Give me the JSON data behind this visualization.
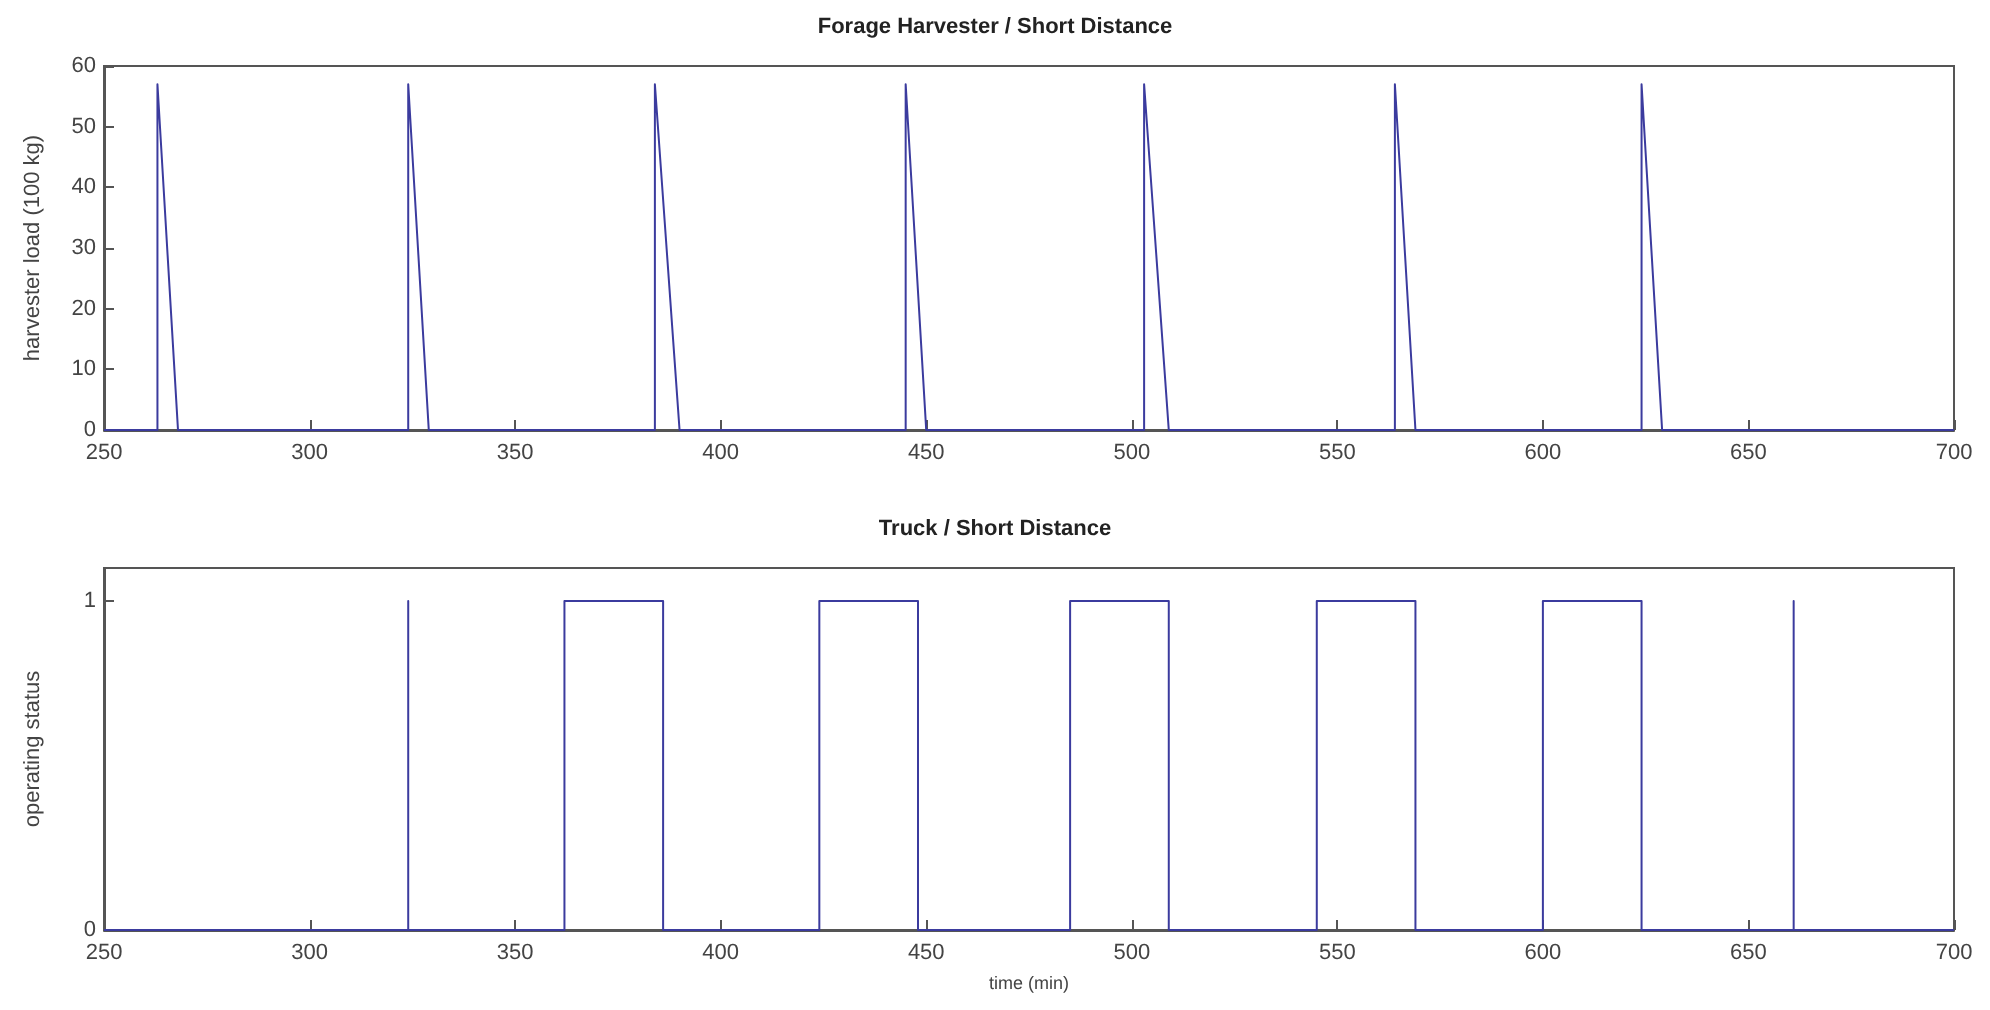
{
  "chart_data": [
    {
      "type": "line",
      "title": "Forage Harvester / Short Distance",
      "ylabel": "harvester load (100 kg)",
      "color": "#3b3b9e",
      "marker": "none",
      "x": [
        250,
        263,
        263,
        268,
        324,
        324,
        329,
        384,
        384,
        390,
        445,
        445,
        450,
        503,
        503,
        509,
        564,
        564,
        569,
        624,
        624,
        629,
        700
      ],
      "values": [
        0,
        0,
        57,
        0,
        0,
        57,
        0,
        0,
        57,
        0,
        0,
        57,
        0,
        0,
        57,
        0,
        0,
        57,
        0,
        0,
        57,
        0,
        0
      ],
      "xlim": [
        250,
        700
      ],
      "xticks": [
        250,
        300,
        350,
        400,
        450,
        500,
        550,
        600,
        650,
        700
      ],
      "ylim": [
        0,
        60
      ],
      "yticks": [
        0,
        10,
        20,
        30,
        40,
        50,
        60
      ]
    },
    {
      "type": "line",
      "title": "Truck / Short Distance",
      "ylabel": "operating status",
      "xlabel": "time (min)",
      "color": "#3b3b9e",
      "marker": "none",
      "x": [
        250,
        324,
        324,
        324,
        362,
        362,
        386,
        386,
        424,
        424,
        448,
        448,
        485,
        485,
        509,
        509,
        545,
        545,
        569,
        569,
        600,
        600,
        624,
        624,
        661,
        661,
        661,
        700
      ],
      "values": [
        0,
        0,
        1,
        0,
        0,
        1,
        1,
        0,
        0,
        1,
        1,
        0,
        0,
        1,
        1,
        0,
        0,
        1,
        1,
        0,
        0,
        1,
        1,
        0,
        0,
        1,
        0,
        0
      ],
      "xlim": [
        250,
        700
      ],
      "xticks": [
        250,
        300,
        350,
        400,
        450,
        500,
        550,
        600,
        650,
        700
      ],
      "ylim": [
        0,
        1.1
      ],
      "yticks": [
        0,
        1
      ]
    }
  ]
}
